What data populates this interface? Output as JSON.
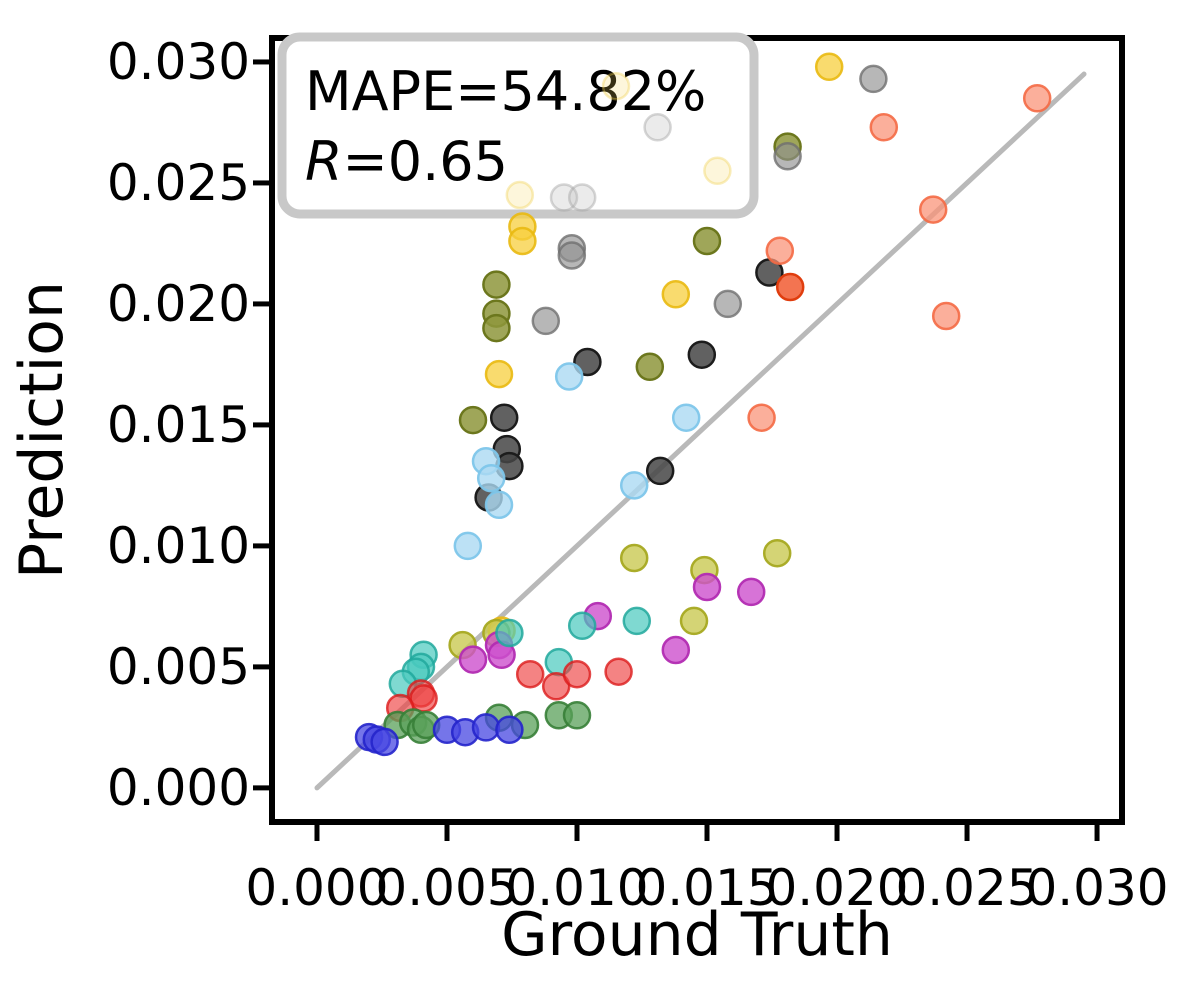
{
  "chart_data": {
    "type": "scatter",
    "xlabel": "Ground Truth",
    "ylabel": "Prediction",
    "annotation": {
      "line1": "MAPE=54.82%",
      "r_label": "R",
      "r_value": "=0.65"
    },
    "x_tick_values": [
      0.0,
      0.005,
      0.01,
      0.015,
      0.02,
      0.025,
      0.03
    ],
    "x_tick_labels": [
      "0.000",
      "0.005",
      "0.010",
      "0.015",
      "0.020",
      "0.025",
      "0.030"
    ],
    "y_tick_values": [
      0.0,
      0.005,
      0.01,
      0.015,
      0.02,
      0.025,
      0.03
    ],
    "y_tick_labels": [
      "0.000",
      "0.005",
      "0.010",
      "0.015",
      "0.020",
      "0.025",
      "0.030"
    ],
    "xlim": [
      -0.00173,
      0.03096
    ],
    "ylim": [
      -0.00141,
      0.03099
    ],
    "grid": false,
    "legend": "none",
    "identity_line": {
      "from": [
        0.0,
        0.0
      ],
      "to": [
        0.0295,
        0.0295
      ],
      "color": "#b9b9b9",
      "width": 5
    },
    "marker": {
      "radius": 13,
      "stroke_width": 2.5
    },
    "series": [
      {
        "name": "yellow",
        "color": "#f7cf3e",
        "edge_color": "#e9b911",
        "alpha": 0.75,
        "points": [
          [
            0.0197,
            0.0298
          ],
          [
            0.0079,
            0.0232
          ],
          [
            0.0079,
            0.0226
          ],
          [
            0.0138,
            0.0204
          ],
          [
            0.007,
            0.0171
          ],
          [
            0.0071,
            0.0065
          ]
        ]
      },
      {
        "name": "pale-yellow",
        "color": "#f5d75c",
        "edge_color": "#efcf4a",
        "alpha": 0.22,
        "points": [
          [
            0.0115,
            0.029
          ],
          [
            0.0154,
            0.0255
          ],
          [
            0.0078,
            0.0245
          ]
        ]
      },
      {
        "name": "olive",
        "color": "#8e963c",
        "edge_color": "#6c771d",
        "alpha": 0.85,
        "points": [
          [
            0.0181,
            0.0265
          ],
          [
            0.015,
            0.0226
          ],
          [
            0.0069,
            0.0208
          ],
          [
            0.0069,
            0.0196
          ],
          [
            0.0069,
            0.019
          ],
          [
            0.0128,
            0.0174
          ],
          [
            0.006,
            0.0152
          ]
        ]
      },
      {
        "name": "gray",
        "color": "#919191",
        "edge_color": "#6f6f6f",
        "alpha": 0.65,
        "points": [
          [
            0.0214,
            0.0293
          ],
          [
            0.0181,
            0.0261
          ],
          [
            0.0098,
            0.0223
          ],
          [
            0.0098,
            0.022
          ],
          [
            0.0158,
            0.02
          ],
          [
            0.0088,
            0.0193
          ]
        ]
      },
      {
        "name": "pale-gray",
        "color": "#bdbdbd",
        "edge_color": "#a3a3a3",
        "alpha": 0.3,
        "points": [
          [
            0.0131,
            0.0273
          ],
          [
            0.0095,
            0.0244
          ],
          [
            0.0102,
            0.0244
          ]
        ]
      },
      {
        "name": "dark-gray",
        "color": "#454545",
        "edge_color": "#1c1c1c",
        "alpha": 0.85,
        "points": [
          [
            0.0174,
            0.0213
          ],
          [
            0.0148,
            0.0179
          ],
          [
            0.0104,
            0.0176
          ],
          [
            0.0072,
            0.0153
          ],
          [
            0.0073,
            0.014
          ],
          [
            0.0074,
            0.0133
          ],
          [
            0.0066,
            0.012
          ],
          [
            0.0132,
            0.0131
          ]
        ]
      },
      {
        "name": "sky-blue",
        "color": "#abd9f2",
        "edge_color": "#7ec6ea",
        "alpha": 0.8,
        "points": [
          [
            0.0097,
            0.017
          ],
          [
            0.0142,
            0.0153
          ],
          [
            0.0065,
            0.0135
          ],
          [
            0.0067,
            0.0128
          ],
          [
            0.007,
            0.0117
          ],
          [
            0.0122,
            0.0125
          ],
          [
            0.0058,
            0.01
          ]
        ]
      },
      {
        "name": "salmon",
        "color": "#f9947a",
        "edge_color": "#f46a45",
        "alpha": 0.75,
        "points": [
          [
            0.0277,
            0.0285
          ],
          [
            0.0218,
            0.0273
          ],
          [
            0.0237,
            0.0239
          ],
          [
            0.0178,
            0.0222
          ],
          [
            0.0242,
            0.0195
          ],
          [
            0.0171,
            0.0153
          ]
        ]
      },
      {
        "name": "orange-red",
        "color": "#f15c33",
        "edge_color": "#e03d0e",
        "alpha": 0.85,
        "points": [
          [
            0.0182,
            0.0207
          ]
        ]
      },
      {
        "name": "dark-khaki",
        "color": "#c9c952",
        "edge_color": "#a6a921",
        "alpha": 0.8,
        "points": [
          [
            0.0177,
            0.0097
          ],
          [
            0.0149,
            0.009
          ],
          [
            0.0122,
            0.0095
          ],
          [
            0.0145,
            0.0069
          ],
          [
            0.0069,
            0.0064
          ],
          [
            0.0056,
            0.0059
          ]
        ]
      },
      {
        "name": "magenta",
        "color": "#cd50cd",
        "edge_color": "#b22cb2",
        "alpha": 0.8,
        "points": [
          [
            0.015,
            0.0083
          ],
          [
            0.0167,
            0.0081
          ],
          [
            0.0108,
            0.0071
          ],
          [
            0.0138,
            0.0057
          ],
          [
            0.007,
            0.0059
          ],
          [
            0.0071,
            0.0055
          ],
          [
            0.006,
            0.0053
          ]
        ]
      },
      {
        "name": "cyan",
        "color": "#48c9bd",
        "edge_color": "#21a89c",
        "alpha": 0.7,
        "points": [
          [
            0.0074,
            0.0064
          ],
          [
            0.0102,
            0.0067
          ],
          [
            0.0123,
            0.0069
          ],
          [
            0.0093,
            0.0052
          ],
          [
            0.0041,
            0.0055
          ],
          [
            0.004,
            0.005
          ],
          [
            0.0038,
            0.0048
          ],
          [
            0.0033,
            0.0043
          ]
        ]
      },
      {
        "name": "red",
        "color": "#ee4040",
        "edge_color": "#dc1c1c",
        "alpha": 0.65,
        "points": [
          [
            0.004,
            0.0039
          ],
          [
            0.0041,
            0.0037
          ],
          [
            0.0032,
            0.0033
          ],
          [
            0.0082,
            0.0047
          ],
          [
            0.0092,
            0.0042
          ],
          [
            0.01,
            0.0047
          ],
          [
            0.0116,
            0.0048
          ]
        ]
      },
      {
        "name": "green",
        "color": "#5aa05a",
        "edge_color": "#377f37",
        "alpha": 0.75,
        "points": [
          [
            0.0031,
            0.0026
          ],
          [
            0.0037,
            0.0027
          ],
          [
            0.004,
            0.0024
          ],
          [
            0.0042,
            0.0026
          ],
          [
            0.007,
            0.0029
          ],
          [
            0.008,
            0.0026
          ],
          [
            0.0093,
            0.003
          ],
          [
            0.01,
            0.003
          ]
        ]
      },
      {
        "name": "blue",
        "color": "#4747e2",
        "edge_color": "#2525cb",
        "alpha": 0.75,
        "points": [
          [
            0.002,
            0.0021
          ],
          [
            0.0023,
            0.002
          ],
          [
            0.0026,
            0.0019
          ],
          [
            0.005,
            0.0024
          ],
          [
            0.0057,
            0.0023
          ],
          [
            0.0065,
            0.0025
          ],
          [
            0.0074,
            0.0024
          ]
        ]
      }
    ],
    "style": {
      "spine_color": "#000000",
      "spine_width": 6,
      "tick_length": 16,
      "tick_width": 5,
      "annotation_border_color": "#c8c8c8",
      "annotation_fill": "#ffffff"
    }
  }
}
